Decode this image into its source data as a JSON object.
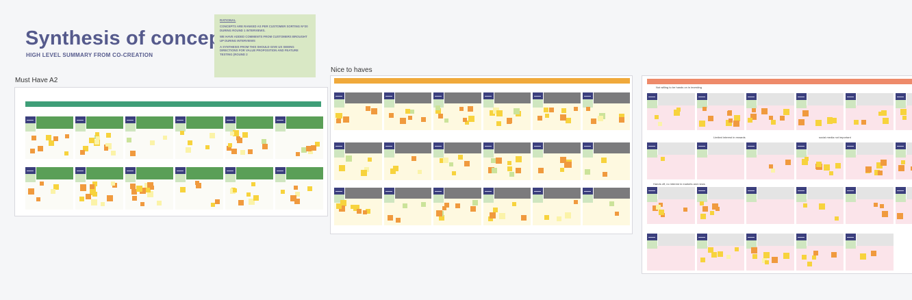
{
  "header": {
    "title": "Synthesis of concepts",
    "subtitle": "HIGH LEVEL SUMMARY FROM CO-CREATION"
  },
  "rational_note": {
    "title": "RATIONAL",
    "paragraphs": [
      "CONCEPTS ARE RANKED AS PER CUSTOMER SORTING N=20 DURING ROUND 1 INTERVIEWS.",
      "WE HAVE ADDED COMMENTS FROM CUSTOMERS BROUGHT UP DURING INTERVIEWS",
      "A SYNTHESIS FROM THIS SHOULD GIVE US SEEING DIRECTIONS FOR VALUE PROPOSITION AND FEATURE TESTING (ROUND 2"
    ],
    "color": "#d9e8c5"
  },
  "boards": {
    "must_have": {
      "label": "Must Have A2",
      "banner_color": "#3f9e78",
      "block_color": "#5a9f57",
      "body_color": "#fbfbf6"
    },
    "nice_to_haves": {
      "label": "Nice to haves",
      "banner_color": "#f0a93b",
      "block_color": "#7b7b7d",
      "body_color": "#fef9e0"
    },
    "third": {
      "label": "",
      "banner_color": "#ee8a6a",
      "block_color": "#e4e4e4",
      "body_color": "#fbe4ea",
      "segment_labels": [
        "Not willing to be hands on in investing",
        "Limited interest in rewards",
        "social media not important",
        "Hands off, no interest in markets and news"
      ]
    }
  },
  "colors": {
    "sticky_yellow": "#f7d33d",
    "sticky_orange": "#f09a3e",
    "sticky_light_yellow": "#fbf3a8",
    "sticky_green": "#cbe39a",
    "card_navy": "#3b3f7d"
  }
}
